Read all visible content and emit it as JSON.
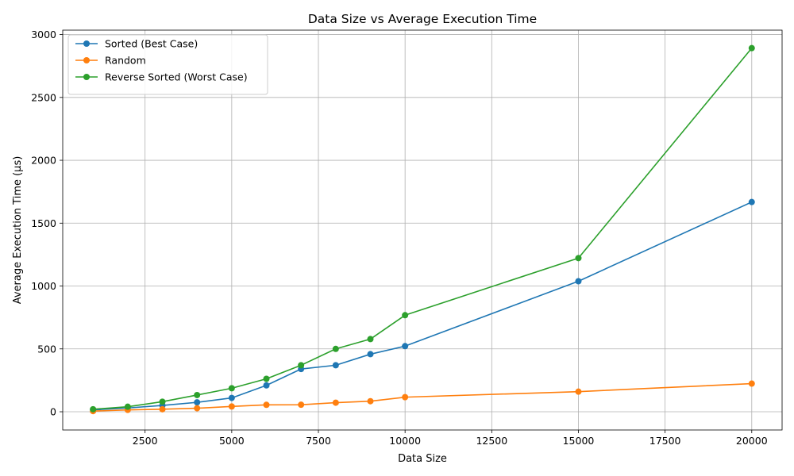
{
  "chart_data": {
    "type": "line",
    "title": "Data Size vs Average Execution Time",
    "xlabel": "Data Size",
    "ylabel": "Average Execution Time (µs)",
    "xlim": [
      125,
      20875
    ],
    "ylim": [
      -145,
      3035
    ],
    "xticks": [
      2500,
      5000,
      7500,
      10000,
      12500,
      15000,
      17500,
      20000
    ],
    "yticks": [
      0,
      500,
      1000,
      1500,
      2000,
      2500,
      3000
    ],
    "grid": true,
    "legend_position": "top-left",
    "x": [
      1000,
      2000,
      3000,
      4000,
      5000,
      6000,
      7000,
      8000,
      9000,
      10000,
      15000,
      20000
    ],
    "series": [
      {
        "name": "Sorted (Best Case)",
        "color": "#1f77b4",
        "marker": "circle",
        "values": [
          15,
          30,
          50,
          75,
          110,
          210,
          340,
          370,
          458,
          522,
          1038,
          1668
        ]
      },
      {
        "name": "Random",
        "color": "#ff7f0e",
        "marker": "circle",
        "values": [
          5,
          15,
          20,
          28,
          42,
          55,
          56,
          72,
          84,
          116,
          160,
          224
        ]
      },
      {
        "name": "Reverse Sorted (Worst Case)",
        "color": "#2ca02c",
        "marker": "circle",
        "values": [
          20,
          40,
          80,
          133,
          187,
          262,
          370,
          500,
          578,
          768,
          1222,
          2892
        ]
      }
    ]
  }
}
